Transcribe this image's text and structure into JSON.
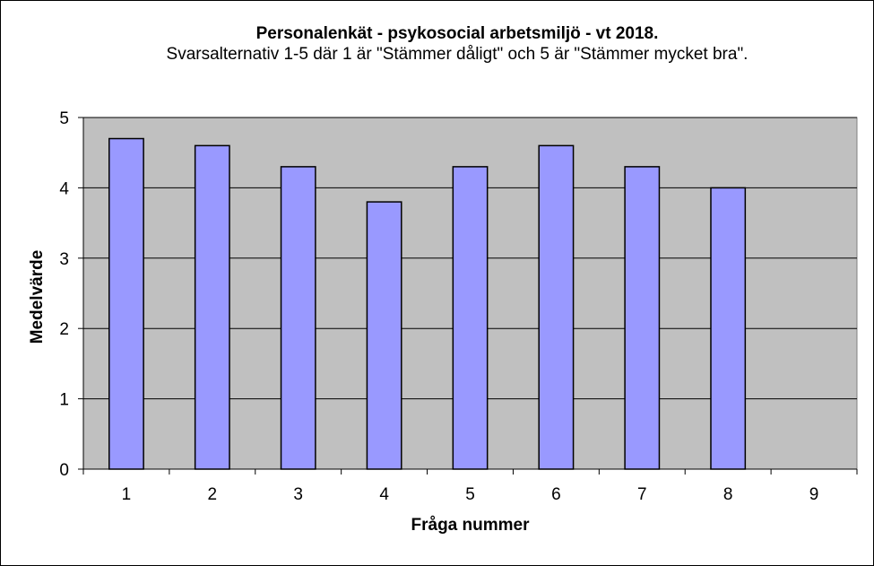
{
  "chart_data": {
    "type": "bar",
    "title": "Personalenkät - psykosocial arbetsmiljö - vt 2018.",
    "subtitle": "Svarsalternativ 1-5 där 1 är \"Stämmer dåligt\" och 5 är \"Stämmer mycket bra\".",
    "xlabel": "Fråga nummer",
    "ylabel": "Medelvärde",
    "categories": [
      "1",
      "2",
      "3",
      "4",
      "5",
      "6",
      "7",
      "8",
      "9"
    ],
    "values": [
      4.7,
      4.6,
      4.3,
      3.8,
      4.3,
      4.6,
      4.3,
      4.0,
      null
    ],
    "ylim": [
      0,
      5
    ],
    "yticks": [
      "0",
      "1",
      "2",
      "3",
      "4",
      "5"
    ],
    "grid": true,
    "legend": "none",
    "colors": {
      "bar_fill": "#9999ff",
      "plot_background": "#c0c0c0",
      "gridline": "#000000"
    }
  }
}
